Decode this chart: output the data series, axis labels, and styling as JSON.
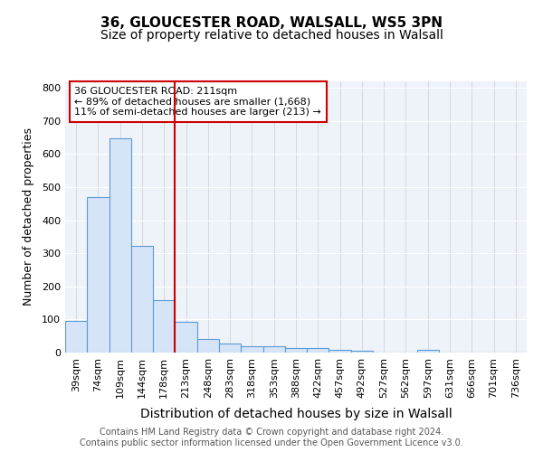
{
  "title1": "36, GLOUCESTER ROAD, WALSALL, WS5 3PN",
  "title2": "Size of property relative to detached houses in Walsall",
  "xlabel": "Distribution of detached houses by size in Walsall",
  "ylabel": "Number of detached properties",
  "bin_labels": [
    "39sqm",
    "74sqm",
    "109sqm",
    "144sqm",
    "178sqm",
    "213sqm",
    "248sqm",
    "283sqm",
    "318sqm",
    "353sqm",
    "388sqm",
    "422sqm",
    "457sqm",
    "492sqm",
    "527sqm",
    "562sqm",
    "597sqm",
    "631sqm",
    "666sqm",
    "701sqm",
    "736sqm"
  ],
  "bar_values": [
    95,
    470,
    648,
    323,
    158,
    93,
    42,
    28,
    20,
    18,
    15,
    13,
    8,
    5,
    0,
    0,
    8,
    0,
    0,
    0,
    0
  ],
  "bar_color": "#d6e4f7",
  "bar_edge_color": "#5b9bd5",
  "highlight_index": 5,
  "highlight_line_color": "#cc0000",
  "annotation_text": "36 GLOUCESTER ROAD: 211sqm\n← 89% of detached houses are smaller (1,668)\n11% of semi-detached houses are larger (213) →",
  "annotation_box_color": "white",
  "annotation_box_edge_color": "#cc0000",
  "ylim": [
    0,
    820
  ],
  "yticks": [
    0,
    100,
    200,
    300,
    400,
    500,
    600,
    700,
    800
  ],
  "background_color": "#eef2f9",
  "footer_text": "Contains HM Land Registry data © Crown copyright and database right 2024.\nContains public sector information licensed under the Open Government Licence v3.0.",
  "title1_fontsize": 11,
  "title2_fontsize": 10,
  "xlabel_fontsize": 10,
  "ylabel_fontsize": 9,
  "tick_fontsize": 8,
  "annotation_fontsize": 8,
  "footer_fontsize": 7
}
